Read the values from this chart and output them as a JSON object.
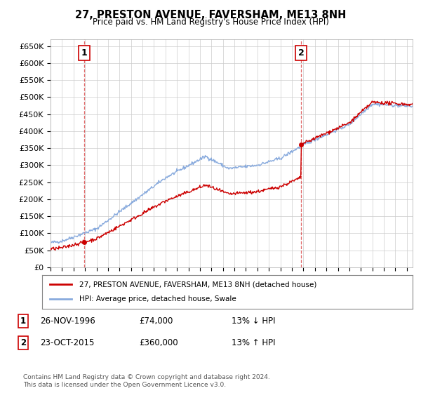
{
  "title": "27, PRESTON AVENUE, FAVERSHAM, ME13 8NH",
  "subtitle": "Price paid vs. HM Land Registry's House Price Index (HPI)",
  "ylim": [
    0,
    670000
  ],
  "yticks": [
    0,
    50000,
    100000,
    150000,
    200000,
    250000,
    300000,
    350000,
    400000,
    450000,
    500000,
    550000,
    600000,
    650000
  ],
  "ytick_labels": [
    "£0",
    "£50K",
    "£100K",
    "£150K",
    "£200K",
    "£250K",
    "£300K",
    "£350K",
    "£400K",
    "£450K",
    "£500K",
    "£550K",
    "£600K",
    "£650K"
  ],
  "sale1_date": 1996.91,
  "sale1_price": 74000,
  "sale2_date": 2015.81,
  "sale2_price": 360000,
  "line_color_property": "#cc0000",
  "line_color_hpi": "#88aadd",
  "marker_color_property": "#cc0000",
  "background_color": "#ffffff",
  "grid_color": "#cccccc",
  "annotation_box_color": "#cc0000",
  "legend_label_property": "27, PRESTON AVENUE, FAVERSHAM, ME13 8NH (detached house)",
  "legend_label_hpi": "HPI: Average price, detached house, Swale",
  "footer": "Contains HM Land Registry data © Crown copyright and database right 2024.\nThis data is licensed under the Open Government Licence v3.0.",
  "table_row1": [
    "1",
    "26-NOV-1996",
    "£74,000",
    "13% ↓ HPI"
  ],
  "table_row2": [
    "2",
    "23-OCT-2015",
    "£360,000",
    "13% ↑ HPI"
  ],
  "xmin": 1994.0,
  "xmax": 2025.5
}
